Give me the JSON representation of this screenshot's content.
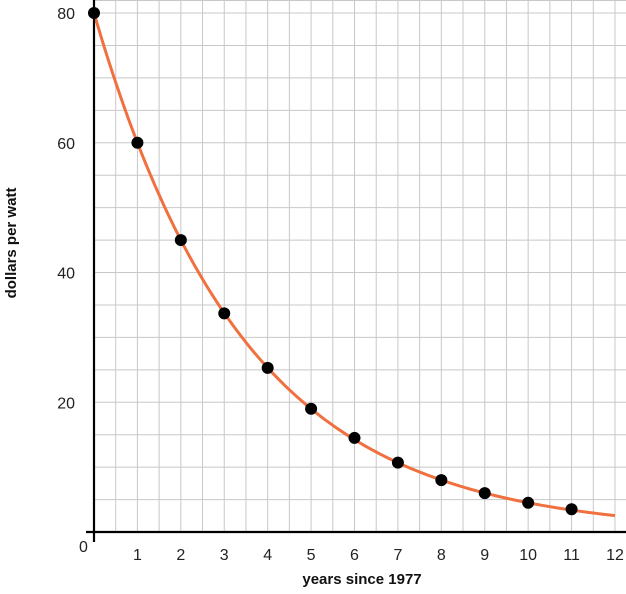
{
  "chart_data": {
    "type": "scatter",
    "xlabel": "years since 1977",
    "ylabel": "dollars per watt",
    "xlim": [
      0,
      12
    ],
    "ylim": [
      0,
      80
    ],
    "x_ticks": [
      1,
      2,
      3,
      4,
      5,
      6,
      7,
      8,
      9,
      10,
      11,
      12
    ],
    "y_ticks": [
      20,
      40,
      60,
      80
    ],
    "origin_label": "0",
    "grid": true,
    "grid_minor_x": 0.5,
    "grid_minor_y": 5,
    "points": [
      {
        "x": 0,
        "y": 80
      },
      {
        "x": 1,
        "y": 60
      },
      {
        "x": 2,
        "y": 45
      },
      {
        "x": 3,
        "y": 33.7
      },
      {
        "x": 4,
        "y": 25.3
      },
      {
        "x": 5,
        "y": 19
      },
      {
        "x": 6,
        "y": 14.5
      },
      {
        "x": 7,
        "y": 10.7
      },
      {
        "x": 8,
        "y": 8
      },
      {
        "x": 9,
        "y": 6
      },
      {
        "x": 10,
        "y": 4.5
      },
      {
        "x": 11,
        "y": 3.5
      }
    ],
    "fit_curve": {
      "a": 80,
      "b": 0.75,
      "x_range": [
        0,
        12
      ]
    },
    "colors": {
      "curve": "#f07040",
      "points": "#000000",
      "grid": "#c8c8c8",
      "axis": "#000000"
    }
  }
}
